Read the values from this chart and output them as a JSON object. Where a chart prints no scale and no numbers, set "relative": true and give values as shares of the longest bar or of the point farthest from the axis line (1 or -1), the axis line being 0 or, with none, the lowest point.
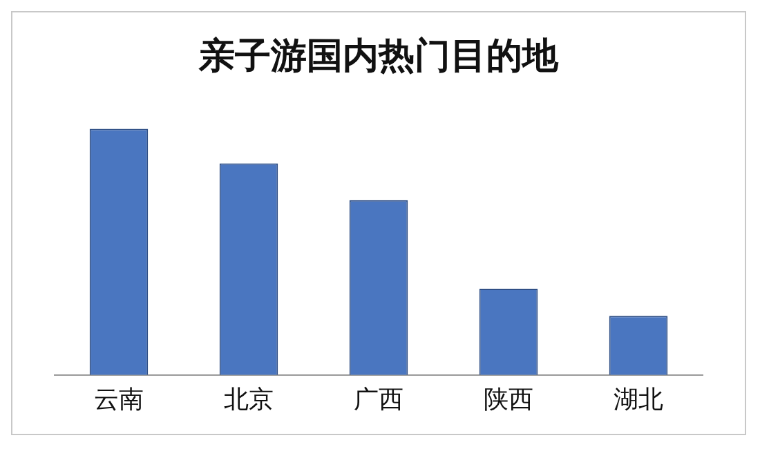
{
  "chart_data": {
    "type": "bar",
    "title": "亲子游国内热门目的地",
    "relative": true,
    "categories": [
      "云南",
      "北京",
      "广西",
      "陕西",
      "湖北"
    ],
    "values": [
      1,
      0.86,
      0.71,
      0.35,
      0.24
    ],
    "color": "#4a76c0",
    "grid": false,
    "legend": false
  }
}
